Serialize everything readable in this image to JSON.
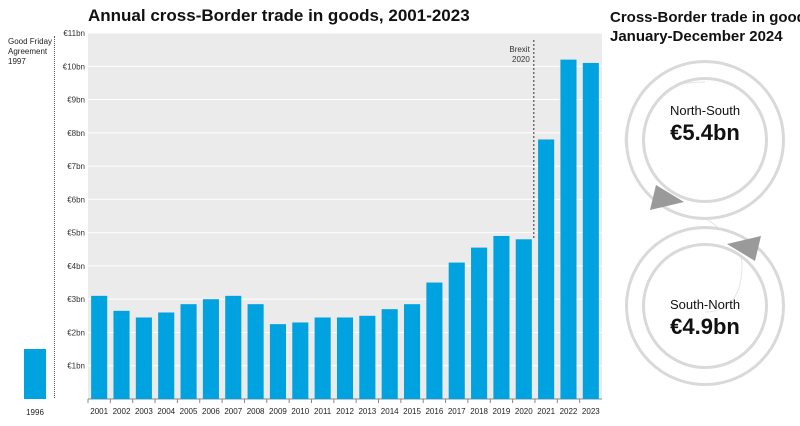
{
  "title": "Annual cross-Border trade in goods, 2001-2023",
  "side_panel": {
    "title_line1": "Cross-Border trade in goods,",
    "title_line2": "January-December 2024",
    "north_south_label": "North-South",
    "north_south_value": "€5.4bn",
    "south_north_label": "South-North",
    "south_north_value": "€4.9bn"
  },
  "gfa": {
    "label_line1": "Good Friday",
    "label_line2": "Agreement",
    "label_line3": "1997",
    "year": "1996",
    "value": 1.5
  },
  "brexit": {
    "label_line1": "Brexit",
    "label_line2": "2020",
    "after_year": "2020"
  },
  "colors": {
    "bar": "#00a3e0",
    "plot_bg": "#ebebeb",
    "loop": "#d4d4d4"
  },
  "chart_data": {
    "type": "bar",
    "title": "Annual cross-Border trade in goods, 2001-2023",
    "xlabel": "",
    "ylabel": "",
    "ylim": [
      0,
      11
    ],
    "grid": true,
    "ytick_labels": [
      "€1bn",
      "€2bn",
      "€3bn",
      "€4bn",
      "€5bn",
      "€6bn",
      "€7bn",
      "€8bn",
      "€9bn",
      "€10bn",
      "€11bn"
    ],
    "categories": [
      "2001",
      "2002",
      "2003",
      "2004",
      "2005",
      "2006",
      "2007",
      "2008",
      "2009",
      "2010",
      "2011",
      "2012",
      "2013",
      "2014",
      "2015",
      "2016",
      "2017",
      "2018",
      "2019",
      "2020",
      "2021",
      "2022",
      "2023"
    ],
    "values": [
      3.1,
      2.65,
      2.45,
      2.6,
      2.85,
      3.0,
      3.1,
      2.85,
      2.25,
      2.3,
      2.45,
      2.45,
      2.5,
      2.7,
      2.85,
      3.5,
      4.1,
      4.55,
      4.9,
      4.8,
      7.8,
      10.2,
      10.1
    ]
  }
}
